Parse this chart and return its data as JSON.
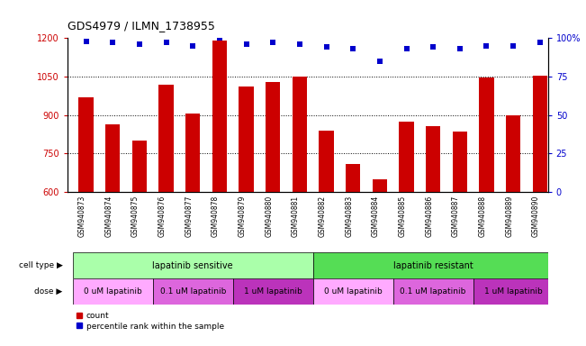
{
  "title": "GDS4979 / ILMN_1738955",
  "samples": [
    "GSM940873",
    "GSM940874",
    "GSM940875",
    "GSM940876",
    "GSM940877",
    "GSM940878",
    "GSM940879",
    "GSM940880",
    "GSM940881",
    "GSM940882",
    "GSM940883",
    "GSM940884",
    "GSM940885",
    "GSM940886",
    "GSM940887",
    "GSM940888",
    "GSM940889",
    "GSM940890"
  ],
  "bar_values": [
    970,
    865,
    800,
    1020,
    905,
    1190,
    1010,
    1030,
    1050,
    840,
    710,
    650,
    875,
    855,
    835,
    1045,
    900,
    1055
  ],
  "dot_values": [
    98,
    97,
    96,
    97,
    95,
    100,
    96,
    97,
    96,
    94,
    93,
    85,
    93,
    94,
    93,
    95,
    95,
    97
  ],
  "bar_color": "#cc0000",
  "dot_color": "#0000cc",
  "ylim_left": [
    600,
    1200
  ],
  "ylim_right": [
    0,
    100
  ],
  "yticks_left": [
    600,
    750,
    900,
    1050,
    1200
  ],
  "yticks_right": [
    0,
    25,
    50,
    75,
    100
  ],
  "ytick_labels_right": [
    "0",
    "25",
    "50",
    "75",
    "100%"
  ],
  "grid_values": [
    750,
    900,
    1050
  ],
  "cell_type_groups": [
    {
      "label": "lapatinib sensitive",
      "color": "#aaffaa",
      "x_start": -0.5,
      "x_end": 8.5
    },
    {
      "label": "lapatinib resistant",
      "color": "#55dd55",
      "x_start": 8.5,
      "x_end": 17.5
    }
  ],
  "dose_groups": [
    {
      "label": "0 uM lapatinib",
      "color": "#ffaaff",
      "x_start": -0.5,
      "x_end": 2.5
    },
    {
      "label": "0.1 uM lapatinib",
      "color": "#dd66dd",
      "x_start": 2.5,
      "x_end": 5.5
    },
    {
      "label": "1 uM lapatinib",
      "color": "#bb33bb",
      "x_start": 5.5,
      "x_end": 8.5
    },
    {
      "label": "0 uM lapatinib",
      "color": "#ffaaff",
      "x_start": 8.5,
      "x_end": 11.5
    },
    {
      "label": "0.1 uM lapatinib",
      "color": "#dd66dd",
      "x_start": 11.5,
      "x_end": 14.5
    },
    {
      "label": "1 uM lapatinib",
      "color": "#bb33bb",
      "x_start": 14.5,
      "x_end": 17.5
    }
  ],
  "background_color": "#ffffff",
  "tick_bg_color": "#cccccc",
  "n_samples": 18,
  "xlim": [
    -0.7,
    17.3
  ]
}
